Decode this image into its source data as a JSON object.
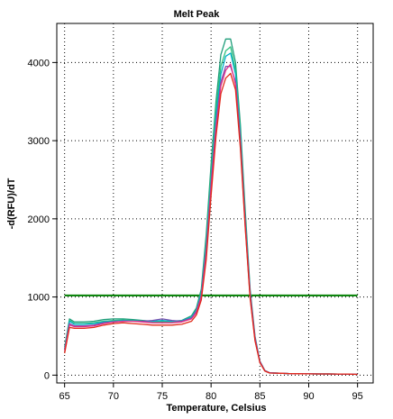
{
  "chart_data": {
    "type": "line",
    "title": "Melt Peak",
    "xlabel": "Temperature, Celsius",
    "ylabel": "-d(RFU)/dT",
    "xlim": [
      64.2,
      96.6
    ],
    "ylim": [
      -100,
      4500
    ],
    "xticks": [
      65,
      70,
      75,
      80,
      85,
      90,
      95
    ],
    "yticks": [
      0,
      1000,
      2000,
      3000,
      4000
    ],
    "grid": true,
    "threshold": {
      "value": 1020,
      "color": "#007f00"
    },
    "series": [
      {
        "color": "#1f9d7a",
        "x": [
          65,
          65.5,
          66,
          67,
          68,
          69,
          70,
          71,
          72,
          73,
          74,
          75,
          76,
          77,
          78,
          78.5,
          79,
          79.5,
          80,
          80.5,
          81,
          81.5,
          82,
          82.5,
          83,
          83.5,
          84,
          84.5,
          85,
          85.5,
          86,
          87,
          88,
          89,
          90,
          91,
          92,
          93,
          94,
          95
        ],
        "y": [
          360,
          720,
          680,
          680,
          690,
          710,
          720,
          720,
          710,
          700,
          690,
          690,
          690,
          700,
          760,
          860,
          1100,
          1800,
          2700,
          3500,
          4100,
          4300,
          4300,
          4000,
          3200,
          2100,
          1100,
          500,
          180,
          60,
          30,
          25,
          20,
          18,
          16,
          15,
          15,
          14,
          14,
          10
        ]
      },
      {
        "color": "#2ec27e",
        "x": [
          65,
          65.5,
          66,
          67,
          68,
          69,
          70,
          71,
          72,
          73,
          74,
          75,
          76,
          77,
          78,
          78.5,
          79,
          79.5,
          80,
          80.5,
          81,
          81.5,
          82,
          82.5,
          83,
          83.5,
          84,
          84.5,
          85,
          85.5,
          86,
          87,
          88,
          89,
          90,
          91,
          92,
          93,
          94,
          95
        ],
        "y": [
          340,
          700,
          660,
          660,
          670,
          690,
          700,
          705,
          700,
          690,
          680,
          680,
          680,
          690,
          740,
          840,
          1050,
          1700,
          2600,
          3400,
          3950,
          4150,
          4200,
          3900,
          3100,
          2000,
          1050,
          470,
          170,
          55,
          28,
          24,
          20,
          18,
          16,
          15,
          15,
          14,
          14,
          10
        ]
      },
      {
        "color": "#00b0c8",
        "x": [
          65,
          65.5,
          66,
          67,
          68,
          69,
          70,
          71,
          72,
          73,
          74,
          75,
          76,
          77,
          78,
          78.5,
          79,
          79.5,
          80,
          80.5,
          81,
          81.5,
          82,
          82.5,
          83,
          83.5,
          84,
          84.5,
          85,
          85.5,
          86,
          87,
          88,
          89,
          90,
          91,
          92,
          93,
          94,
          95
        ],
        "y": [
          330,
          690,
          650,
          650,
          660,
          680,
          690,
          700,
          695,
          690,
          690,
          700,
          690,
          695,
          740,
          830,
          1040,
          1650,
          2500,
          3300,
          3850,
          4080,
          4120,
          3850,
          3050,
          1980,
          1040,
          470,
          170,
          55,
          28,
          24,
          20,
          18,
          16,
          15,
          15,
          14,
          14,
          10
        ]
      },
      {
        "color": "#7a4fb0",
        "x": [
          65,
          65.5,
          66,
          67,
          68,
          69,
          70,
          71,
          72,
          73,
          74,
          75,
          76,
          77,
          78,
          78.5,
          79,
          79.5,
          80,
          80.5,
          81,
          81.5,
          82,
          82.5,
          83,
          83.5,
          84,
          84.5,
          85,
          85.5,
          86,
          87,
          88,
          89,
          90,
          91,
          92,
          93,
          94,
          95
        ],
        "y": [
          320,
          660,
          630,
          630,
          640,
          670,
          680,
          690,
          690,
          690,
          700,
          720,
          700,
          690,
          730,
          820,
          1020,
          1600,
          2450,
          3200,
          3750,
          3950,
          3950,
          3750,
          3000,
          1950,
          1050,
          480,
          175,
          58,
          30,
          25,
          20,
          18,
          16,
          15,
          15,
          14,
          14,
          10
        ]
      },
      {
        "color": "#e0308a",
        "x": [
          65,
          65.5,
          66,
          67,
          68,
          69,
          70,
          71,
          72,
          73,
          74,
          75,
          76,
          77,
          78,
          78.5,
          79,
          79.5,
          80,
          80.5,
          81,
          81.5,
          82,
          82.5,
          83,
          83.5,
          84,
          84.5,
          85,
          85.5,
          86,
          87,
          88,
          89,
          90,
          91,
          92,
          93,
          94,
          95
        ],
        "y": [
          310,
          640,
          620,
          620,
          630,
          660,
          680,
          690,
          690,
          680,
          670,
          670,
          670,
          680,
          720,
          800,
          1000,
          1550,
          2400,
          3150,
          3700,
          3900,
          3980,
          3720,
          2950,
          1900,
          1000,
          450,
          165,
          55,
          28,
          24,
          20,
          18,
          16,
          15,
          15,
          14,
          14,
          10
        ]
      },
      {
        "color": "#e02a1a",
        "x": [
          65,
          65.5,
          66,
          67,
          68,
          69,
          70,
          71,
          72,
          73,
          74,
          75,
          76,
          77,
          78,
          78.5,
          79,
          79.5,
          80,
          80.5,
          81,
          81.5,
          82,
          82.5,
          83,
          83.5,
          84,
          84.5,
          85,
          85.5,
          86,
          87,
          88,
          89,
          90,
          91,
          92,
          93,
          94,
          95
        ],
        "y": [
          280,
          610,
          600,
          600,
          610,
          640,
          660,
          670,
          660,
          650,
          640,
          640,
          640,
          650,
          690,
          770,
          960,
          1480,
          2300,
          3050,
          3600,
          3800,
          3860,
          3650,
          2900,
          1880,
          980,
          440,
          160,
          52,
          27,
          24,
          20,
          18,
          16,
          15,
          15,
          14,
          14,
          10
        ]
      }
    ]
  }
}
